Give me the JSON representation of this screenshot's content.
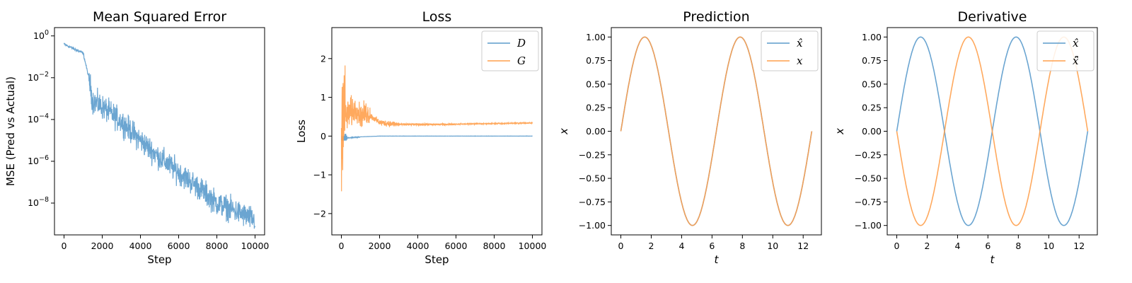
{
  "colors": {
    "blue": "#5b9bcc",
    "orange": "#ffa04d",
    "overlap": "#c58a4f"
  },
  "chart_data": [
    {
      "type": "line",
      "title": "Mean Squared Error",
      "xlabel": "Step",
      "ylabel": "MSE (Pred vs Actual)",
      "yscale": "log",
      "xlim": [
        -500,
        10500
      ],
      "ylim": [
        3e-10,
        2.5
      ],
      "xticks": [
        0,
        2000,
        4000,
        6000,
        8000,
        10000
      ],
      "xtick_labels": [
        "0",
        "2000",
        "4000",
        "6000",
        "8000",
        "10000"
      ],
      "yticks": [
        1,
        0.01,
        0.0001,
        1e-06,
        1e-08
      ],
      "ytick_labels": [
        {
          "base": "10",
          "exp": "0"
        },
        {
          "base": "10",
          "exp": "−2"
        },
        {
          "base": "10",
          "exp": "−4"
        },
        {
          "base": "10",
          "exp": "−6"
        },
        {
          "base": "10",
          "exp": "−8"
        }
      ],
      "grid": false,
      "series": [
        {
          "color": "#5b9bcc",
          "note": "noisy decay",
          "x": [
            0,
            1000,
            1300,
            1500,
            2000,
            3000,
            4000,
            5000,
            6000,
            7000,
            8000,
            9000,
            10000
          ],
          "y": [
            0.4,
            0.15,
            0.01,
            0.0008,
            0.0004,
            8e-05,
            1e-05,
            1.5e-06,
            3e-07,
            6e-08,
            1e-08,
            4e-09,
            1.5e-09
          ]
        }
      ]
    },
    {
      "type": "line",
      "title": "Loss",
      "xlabel": "Step",
      "ylabel": "Loss",
      "xlim": [
        -500,
        10500
      ],
      "ylim": [
        -2.55,
        2.8
      ],
      "xticks": [
        0,
        2000,
        4000,
        6000,
        8000,
        10000
      ],
      "xtick_labels": [
        "0",
        "2000",
        "4000",
        "6000",
        "8000",
        "10000"
      ],
      "yticks": [
        -2,
        -1,
        0,
        1,
        2
      ],
      "ytick_labels": [
        "−2",
        "−1",
        "0",
        "1",
        "2"
      ],
      "legend": {
        "placement": "top-right"
      },
      "grid": false,
      "series": [
        {
          "name": "D",
          "color": "#5b9bcc",
          "x": [
            0,
            200,
            500,
            1000,
            2000,
            5000,
            10000
          ],
          "y": [
            -0.1,
            -0.05,
            -0.04,
            -0.02,
            0.0,
            0.0,
            0.0
          ]
        },
        {
          "name": "G",
          "color": "#ffa04d",
          "x": [
            0,
            100,
            200,
            500,
            800,
            1000,
            1300,
            2000,
            3000,
            5000,
            10000
          ],
          "y": [
            0.0,
            1.0,
            0.5,
            0.6,
            0.7,
            0.5,
            0.6,
            0.35,
            0.3,
            0.3,
            0.34
          ]
        }
      ]
    },
    {
      "type": "line",
      "title": "Prediction",
      "xlabel": "t",
      "ylabel": "x",
      "xlim": [
        -0.63,
        13.2
      ],
      "ylim": [
        -1.1,
        1.1
      ],
      "xticks": [
        0,
        2,
        4,
        6,
        8,
        10,
        12
      ],
      "xtick_labels": [
        "0",
        "2",
        "4",
        "6",
        "8",
        "10",
        "12"
      ],
      "yticks": [
        1.0,
        0.75,
        0.5,
        0.25,
        0.0,
        -0.25,
        -0.5,
        -0.75,
        -1.0
      ],
      "ytick_labels": [
        "1.00",
        "0.75",
        "0.50",
        "0.25",
        "0.00",
        "−0.25",
        "−0.50",
        "−0.75",
        "−1.00"
      ],
      "legend": {
        "placement": "top-right"
      },
      "grid": false,
      "t_range": [
        0,
        12.566
      ],
      "series": [
        {
          "name": "x̂",
          "color": "#5b9bcc",
          "function": "sin(t)"
        },
        {
          "name": "x",
          "color": "#ffa04d",
          "function": "sin(t)"
        }
      ]
    },
    {
      "type": "line",
      "title": "Derivative",
      "xlabel": "t",
      "ylabel": "x",
      "xlim": [
        -0.63,
        13.2
      ],
      "ylim": [
        -1.1,
        1.1
      ],
      "xticks": [
        0,
        2,
        4,
        6,
        8,
        10,
        12
      ],
      "xtick_labels": [
        "0",
        "2",
        "4",
        "6",
        "8",
        "10",
        "12"
      ],
      "yticks": [
        1.0,
        0.75,
        0.5,
        0.25,
        0.0,
        -0.25,
        -0.5,
        -0.75,
        -1.0
      ],
      "ytick_labels": [
        "1.00",
        "0.75",
        "0.50",
        "0.25",
        "0.00",
        "−0.25",
        "−0.50",
        "−0.75",
        "−1.00"
      ],
      "legend": {
        "placement": "top-right"
      },
      "grid": false,
      "t_range": [
        0,
        12.566
      ],
      "series": [
        {
          "name": "x̂",
          "color": "#5b9bcc",
          "function": "sin(t)"
        },
        {
          "name": "x̂̈",
          "color": "#ffa04d",
          "function": "-sin(t)"
        }
      ]
    }
  ]
}
